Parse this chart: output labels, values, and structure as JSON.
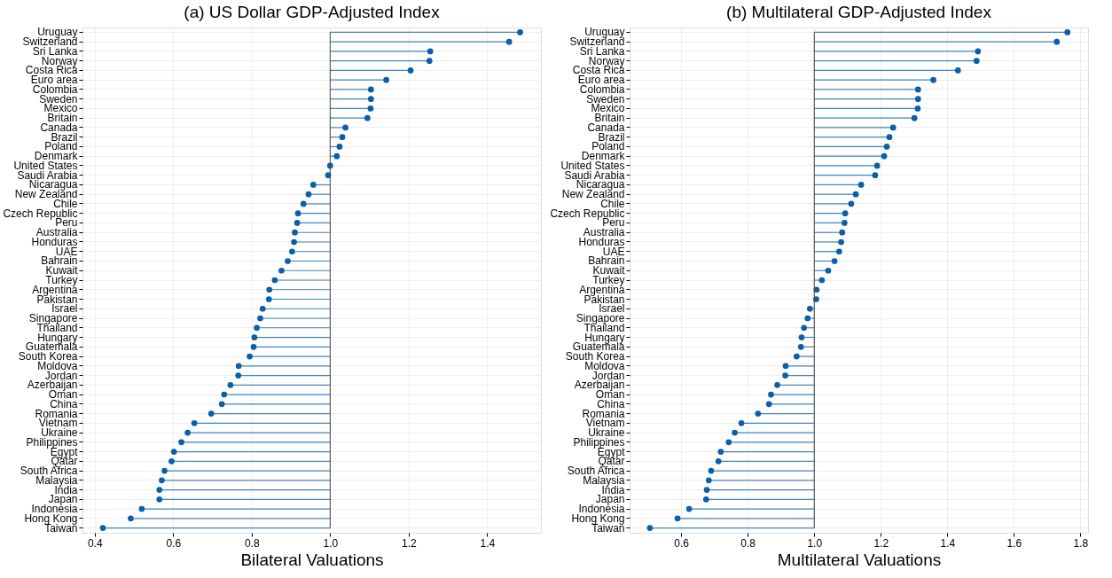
{
  "chart_data": [
    {
      "type": "lollipop",
      "orientation": "horizontal",
      "title": "(a) US Dollar GDP-Adjusted Index",
      "xlabel": "Bilateral Valuations",
      "categories": [
        "Uruguay",
        "Switzerland",
        "Sri Lanka",
        "Norway",
        "Costa Rica",
        "Euro area",
        "Colombia",
        "Sweden",
        "Mexico",
        "Britain",
        "Canada",
        "Brazil",
        "Poland",
        "Denmark",
        "United States",
        "Saudi Arabia",
        "Nicaragua",
        "New Zealand",
        "Chile",
        "Czech Republic",
        "Peru",
        "Australia",
        "Honduras",
        "UAE",
        "Bahrain",
        "Kuwait",
        "Turkey",
        "Argentina",
        "Pakistan",
        "Israel",
        "Singapore",
        "Thailand",
        "Hungary",
        "Guatemala",
        "South Korea",
        "Moldova",
        "Jordan",
        "Azerbaijan",
        "Oman",
        "China",
        "Romania",
        "Vietnam",
        "Ukraine",
        "Philippines",
        "Egypt",
        "Qatar",
        "South Africa",
        "Malaysia",
        "India",
        "Japan",
        "Indonesia",
        "Hong Kong",
        "Taiwan"
      ],
      "series": [
        {
          "color": "#0a5fa8",
          "values": [
            1.484,
            1.456,
            1.255,
            1.253,
            1.205,
            1.143,
            1.104,
            1.104,
            1.103,
            1.095,
            1.039,
            1.031,
            1.024,
            1.017,
            1.0,
            0.995,
            0.957,
            0.945,
            0.932,
            0.918,
            0.916,
            0.91,
            0.908,
            0.903,
            0.892,
            0.876,
            0.859,
            0.845,
            0.844,
            0.828,
            0.822,
            0.813,
            0.807,
            0.805,
            0.795,
            0.767,
            0.766,
            0.746,
            0.73,
            0.724,
            0.697,
            0.654,
            0.637,
            0.621,
            0.602,
            0.596,
            0.578,
            0.571,
            0.565,
            0.565,
            0.52,
            0.492,
            0.421
          ],
          "errors": [
            [
              1.0,
              1.484
            ],
            [
              1.0,
              1.456
            ],
            [
              1.0,
              1.255
            ],
            [
              1.0,
              1.253
            ],
            [
              1.0,
              1.205
            ],
            [
              1.0,
              1.143
            ],
            [
              1.0,
              1.104
            ],
            [
              1.0,
              1.104
            ],
            [
              1.0,
              1.103
            ],
            [
              1.0,
              1.095
            ],
            [
              1.0,
              1.039
            ],
            [
              1.0,
              1.031
            ],
            [
              1.0,
              1.024
            ],
            [
              1.0,
              1.017
            ],
            null,
            [
              0.995,
              1.0
            ],
            [
              0.957,
              1.0
            ],
            [
              0.945,
              1.0
            ],
            [
              0.932,
              1.0
            ],
            [
              0.918,
              1.0
            ],
            [
              0.916,
              1.0
            ],
            [
              0.91,
              1.0
            ],
            [
              0.908,
              1.0
            ],
            [
              0.903,
              1.0
            ],
            [
              0.892,
              1.0
            ],
            [
              0.876,
              1.0
            ],
            [
              0.859,
              1.0
            ],
            [
              0.845,
              1.0
            ],
            [
              0.844,
              1.0
            ],
            [
              0.828,
              1.0
            ],
            [
              0.822,
              1.0
            ],
            [
              0.813,
              1.0
            ],
            [
              0.807,
              1.0
            ],
            [
              0.805,
              1.0
            ],
            [
              0.795,
              1.0
            ],
            [
              0.767,
              1.0
            ],
            [
              0.766,
              1.0
            ],
            [
              0.746,
              1.0
            ],
            [
              0.73,
              1.0
            ],
            [
              0.724,
              1.0
            ],
            [
              0.697,
              1.0
            ],
            [
              0.654,
              1.0
            ],
            [
              0.637,
              1.0
            ],
            [
              0.621,
              1.0
            ],
            [
              0.602,
              1.0
            ],
            [
              0.596,
              1.0
            ],
            [
              0.578,
              1.0
            ],
            [
              0.571,
              1.0
            ],
            [
              0.565,
              1.0
            ],
            [
              0.565,
              1.0
            ],
            [
              0.52,
              1.0
            ],
            [
              0.492,
              1.0
            ],
            [
              0.421,
              1.0
            ]
          ]
        }
      ],
      "ref_lines": [
        {
          "axis": "x",
          "value": 1.0,
          "color": "#404040"
        }
      ],
      "xlim": [
        0.369,
        1.537
      ],
      "xticks": [
        0.4,
        0.6,
        0.8,
        {
          "value": 1,
          "label": "1.0"
        },
        1.2,
        1.4
      ],
      "grid": true,
      "marker": "circle"
    },
    {
      "type": "lollipop",
      "orientation": "horizontal",
      "title": "(b) Multilateral GDP-Adjusted Index",
      "xlabel": "Multilateral Valuations",
      "categories": [
        "Uruguay",
        "Switzerland",
        "Sri Lanka",
        "Norway",
        "Costa Rica",
        "Euro area",
        "Colombia",
        "Sweden",
        "Mexico",
        "Britain",
        "Canada",
        "Brazil",
        "Poland",
        "Denmark",
        "United States",
        "Saudi Arabia",
        "Nicaragua",
        "New Zealand",
        "Chile",
        "Czech Republic",
        "Peru",
        "Australia",
        "Honduras",
        "UAE",
        "Bahrain",
        "Kuwait",
        "Turkey",
        "Argentina",
        "Pakistan",
        "Israel",
        "Singapore",
        "Thailand",
        "Hungary",
        "Guatemala",
        "South Korea",
        "Moldova",
        "Jordan",
        "Azerbaijan",
        "Oman",
        "China",
        "Romania",
        "Vietnam",
        "Ukraine",
        "Philippines",
        "Egypt",
        "Qatar",
        "South Africa",
        "Malaysia",
        "India",
        "Japan",
        "Indonesia",
        "Hong Kong",
        "Taiwan"
      ],
      "series": [
        {
          "color": "#0a5fa8",
          "values": [
            1.761,
            1.729,
            1.492,
            1.488,
            1.432,
            1.358,
            1.312,
            1.312,
            1.311,
            1.301,
            1.237,
            1.226,
            1.218,
            1.21,
            1.189,
            1.183,
            1.141,
            1.125,
            1.111,
            1.093,
            1.091,
            1.084,
            1.081,
            1.075,
            1.061,
            1.042,
            1.023,
            1.007,
            1.006,
            0.987,
            0.98,
            0.969,
            0.962,
            0.96,
            0.947,
            0.914,
            0.913,
            0.889,
            0.87,
            0.864,
            0.831,
            0.781,
            0.761,
            0.743,
            0.719,
            0.712,
            0.69,
            0.683,
            0.677,
            0.675,
            0.624,
            0.589,
            0.506
          ],
          "errors": [
            [
              1.0,
              1.761
            ],
            [
              1.0,
              1.729
            ],
            [
              1.0,
              1.492
            ],
            [
              1.0,
              1.488
            ],
            [
              1.0,
              1.432
            ],
            [
              1.0,
              1.358
            ],
            [
              1.0,
              1.312
            ],
            [
              1.0,
              1.312
            ],
            [
              1.0,
              1.311
            ],
            [
              1.0,
              1.301
            ],
            [
              1.0,
              1.237
            ],
            [
              1.0,
              1.226
            ],
            [
              1.0,
              1.218
            ],
            [
              1.0,
              1.21
            ],
            [
              1.0,
              1.189
            ],
            [
              1.0,
              1.183
            ],
            [
              1.0,
              1.141
            ],
            [
              1.0,
              1.125
            ],
            [
              1.0,
              1.111
            ],
            [
              1.0,
              1.093
            ],
            [
              1.0,
              1.091
            ],
            [
              1.0,
              1.084
            ],
            [
              1.0,
              1.081
            ],
            [
              1.0,
              1.075
            ],
            [
              1.0,
              1.061
            ],
            [
              1.0,
              1.042
            ],
            [
              1.0,
              1.023
            ],
            [
              1.0,
              1.007
            ],
            [
              1.0,
              1.006
            ],
            [
              0.987,
              1.0
            ],
            [
              0.98,
              1.0
            ],
            [
              0.969,
              1.0
            ],
            [
              0.962,
              1.0
            ],
            [
              0.96,
              1.0
            ],
            [
              0.947,
              1.0
            ],
            [
              0.914,
              1.0
            ],
            [
              0.913,
              1.0
            ],
            [
              0.889,
              1.0
            ],
            [
              0.87,
              1.0
            ],
            [
              0.864,
              1.0
            ],
            [
              0.831,
              1.0
            ],
            [
              0.781,
              1.0
            ],
            [
              0.761,
              1.0
            ],
            [
              0.743,
              1.0
            ],
            [
              0.719,
              1.0
            ],
            [
              0.712,
              1.0
            ],
            [
              0.69,
              1.0
            ],
            [
              0.683,
              1.0
            ],
            [
              0.677,
              1.0
            ],
            [
              0.675,
              1.0
            ],
            [
              0.624,
              1.0
            ],
            [
              0.589,
              1.0
            ],
            [
              0.506,
              1.0
            ]
          ]
        }
      ],
      "ref_lines": [
        {
          "axis": "x",
          "value": 1.0,
          "color": "#404040"
        }
      ],
      "xlim": [
        0.445,
        1.823
      ],
      "xticks": [
        0.6,
        0.8,
        {
          "value": 1,
          "label": "1.0"
        },
        1.2,
        1.4,
        1.6,
        1.8
      ],
      "grid": true,
      "marker": "circle"
    }
  ]
}
